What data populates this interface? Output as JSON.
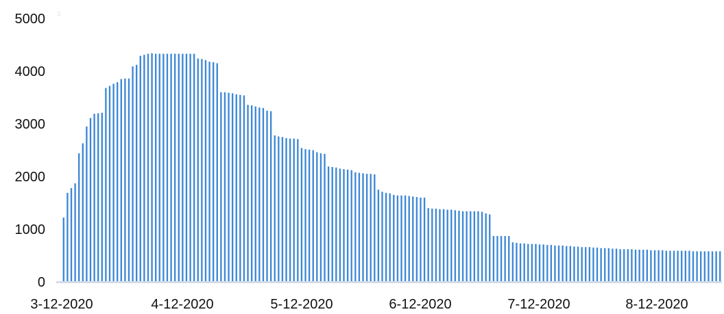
{
  "chart_data": {
    "type": "bar",
    "title": "",
    "xlabel": "",
    "ylabel": "",
    "ylim": [
      0,
      5000
    ],
    "yticks": [
      0,
      1000,
      2000,
      3000,
      4000,
      5000
    ],
    "xtick_labels": [
      "3-12-2020",
      "4-12-2020",
      "5-12-2020",
      "6-12-2020",
      "7-12-2020",
      "8-12-2020"
    ],
    "grid": false,
    "legend": "none",
    "bar_color": "#3d87d6",
    "axis_color": "#d3dbe6",
    "series": [
      {
        "values": [
          1220,
          1690,
          1780,
          1870,
          2440,
          2630,
          2950,
          3110,
          3190,
          3200,
          3210,
          3680,
          3720,
          3760,
          3790,
          3850,
          3860,
          3860,
          4090,
          4120,
          4290,
          4310,
          4330,
          4340,
          4330,
          4330,
          4330,
          4330,
          4330,
          4330,
          4330,
          4330,
          4330,
          4330,
          4330,
          4240,
          4230,
          4210,
          4180,
          4170,
          4150,
          3600,
          3600,
          3590,
          3580,
          3560,
          3550,
          3540,
          3360,
          3350,
          3330,
          3310,
          3300,
          3250,
          3240,
          2780,
          2760,
          2750,
          2730,
          2720,
          2720,
          2710,
          2540,
          2520,
          2510,
          2500,
          2460,
          2440,
          2430,
          2190,
          2180,
          2170,
          2150,
          2140,
          2130,
          2120,
          2080,
          2070,
          2060,
          2050,
          2050,
          2040,
          1750,
          1710,
          1690,
          1680,
          1650,
          1640,
          1640,
          1640,
          1630,
          1620,
          1610,
          1600,
          1600,
          1400,
          1390,
          1390,
          1380,
          1380,
          1370,
          1370,
          1360,
          1350,
          1340,
          1340,
          1340,
          1340,
          1340,
          1330,
          1300,
          1280,
          870,
          870,
          870,
          870,
          870,
          750,
          740,
          730,
          730,
          720,
          720,
          720,
          710,
          710,
          700,
          700,
          690,
          690,
          690,
          680,
          680,
          670,
          670,
          660,
          660,
          660,
          650,
          650,
          640,
          640,
          640,
          630,
          630,
          620,
          620,
          620,
          620,
          610,
          610,
          610,
          610,
          600,
          600,
          600,
          600,
          590,
          590,
          590,
          590,
          590,
          590,
          590,
          580,
          580,
          580,
          580,
          580,
          580,
          580,
          580
        ]
      }
    ]
  }
}
